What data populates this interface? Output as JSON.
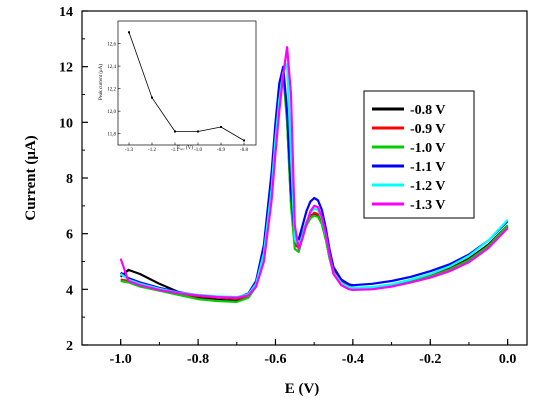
{
  "chart_data": [
    {
      "type": "line",
      "title": "",
      "xlabel": "E (V)",
      "ylabel": "Current (μA)",
      "xlim": [
        -1.1,
        0.05
      ],
      "ylim": [
        2,
        14
      ],
      "x_ticks": [
        "-1.0",
        "-0.8",
        "-0.6",
        "-0.4",
        "-0.2",
        "0.0"
      ],
      "y_ticks": [
        "2",
        "4",
        "6",
        "8",
        "10",
        "12",
        "14"
      ],
      "grid": false,
      "legend": "right",
      "x": [
        -1.0,
        -0.98,
        -0.95,
        -0.9,
        -0.85,
        -0.8,
        -0.75,
        -0.7,
        -0.67,
        -0.65,
        -0.63,
        -0.61,
        -0.6,
        -0.59,
        -0.58,
        -0.57,
        -0.56,
        -0.55,
        -0.54,
        -0.53,
        -0.52,
        -0.51,
        -0.5,
        -0.49,
        -0.48,
        -0.47,
        -0.46,
        -0.45,
        -0.43,
        -0.41,
        -0.4,
        -0.35,
        -0.3,
        -0.25,
        -0.2,
        -0.15,
        -0.1,
        -0.05,
        0.0
      ],
      "series": [
        {
          "name": "-0.8 V",
          "color": "#000000",
          "values": [
            4.45,
            4.7,
            4.55,
            4.2,
            3.9,
            3.7,
            3.62,
            3.58,
            3.72,
            4.2,
            5.5,
            8.0,
            9.8,
            11.2,
            11.9,
            10.2,
            7.2,
            5.7,
            5.55,
            6.0,
            6.4,
            6.65,
            6.7,
            6.65,
            6.35,
            5.8,
            5.1,
            4.6,
            4.25,
            4.1,
            4.05,
            4.05,
            4.15,
            4.3,
            4.5,
            4.75,
            5.1,
            5.6,
            6.3
          ]
        },
        {
          "name": "-0.9 V",
          "color": "#ff0000",
          "values": [
            4.35,
            4.3,
            4.15,
            4.0,
            3.85,
            3.75,
            3.7,
            3.66,
            3.75,
            4.15,
            5.4,
            7.9,
            9.7,
            11.1,
            11.8,
            10.1,
            7.1,
            5.6,
            5.5,
            5.95,
            6.35,
            6.6,
            6.75,
            6.7,
            6.45,
            5.9,
            5.2,
            4.65,
            4.28,
            4.12,
            4.06,
            4.06,
            4.15,
            4.3,
            4.48,
            4.72,
            5.05,
            5.55,
            6.25
          ]
        },
        {
          "name": "-1.0 V",
          "color": "#00cc00",
          "values": [
            4.3,
            4.25,
            4.1,
            3.95,
            3.8,
            3.65,
            3.58,
            3.55,
            3.7,
            4.1,
            5.3,
            7.8,
            9.6,
            11.0,
            11.7,
            10.0,
            7.0,
            5.45,
            5.35,
            5.85,
            6.3,
            6.55,
            6.65,
            6.6,
            6.35,
            5.8,
            5.1,
            4.58,
            4.22,
            4.06,
            4.02,
            4.03,
            4.12,
            4.28,
            4.46,
            4.7,
            5.05,
            5.55,
            6.3
          ]
        },
        {
          "name": "-1.1 V",
          "color": "#0000ff",
          "values": [
            4.6,
            4.4,
            4.25,
            4.05,
            3.9,
            3.78,
            3.72,
            3.7,
            3.85,
            4.3,
            5.6,
            8.2,
            10.0,
            11.4,
            12.0,
            10.4,
            7.5,
            5.9,
            5.8,
            6.3,
            6.8,
            7.15,
            7.28,
            7.2,
            6.85,
            6.2,
            5.4,
            4.8,
            4.35,
            4.18,
            4.15,
            4.2,
            4.3,
            4.45,
            4.65,
            4.9,
            5.25,
            5.75,
            6.45
          ]
        },
        {
          "name": "-1.2 V",
          "color": "#00ffff",
          "values": [
            4.55,
            4.35,
            4.2,
            4.02,
            3.88,
            3.8,
            3.75,
            3.72,
            3.82,
            4.2,
            5.3,
            7.6,
            9.4,
            10.8,
            11.8,
            12.1,
            8.8,
            5.8,
            5.55,
            5.95,
            6.4,
            6.75,
            6.9,
            6.85,
            6.55,
            5.95,
            5.2,
            4.6,
            4.22,
            4.08,
            4.05,
            4.08,
            4.18,
            4.35,
            4.55,
            4.82,
            5.2,
            5.75,
            6.5
          ]
        },
        {
          "name": "-1.3 V",
          "color": "#ff00ff",
          "values": [
            5.1,
            4.3,
            4.15,
            3.98,
            3.86,
            3.78,
            3.72,
            3.7,
            3.78,
            4.1,
            5.0,
            7.2,
            8.9,
            10.4,
            11.7,
            12.7,
            11.0,
            6.3,
            5.45,
            5.85,
            6.35,
            6.8,
            7.0,
            6.95,
            6.6,
            6.0,
            5.2,
            4.55,
            4.15,
            4.0,
            3.98,
            4.0,
            4.1,
            4.25,
            4.42,
            4.65,
            4.98,
            5.48,
            6.2
          ]
        }
      ]
    },
    {
      "type": "line",
      "title": "",
      "xlabel": "E",
      "xlabel_sub": "acc",
      "xlabel_unit": " (V)",
      "ylabel": "Peak current (μA)",
      "categories": [
        "-1.3",
        "-1.2",
        "-1.1",
        "-1.0",
        "-0.9",
        "-0.8"
      ],
      "values": [
        12.7,
        12.12,
        11.82,
        11.82,
        11.86,
        11.74
      ],
      "ylim": [
        11.7,
        12.8
      ],
      "y_ticks": [
        "11,8",
        "12,0",
        "12,2",
        "12,4",
        "12,6"
      ],
      "y_tick_values": [
        11.8,
        12.0,
        12.2,
        12.4,
        12.6
      ],
      "color": "#000000"
    }
  ]
}
